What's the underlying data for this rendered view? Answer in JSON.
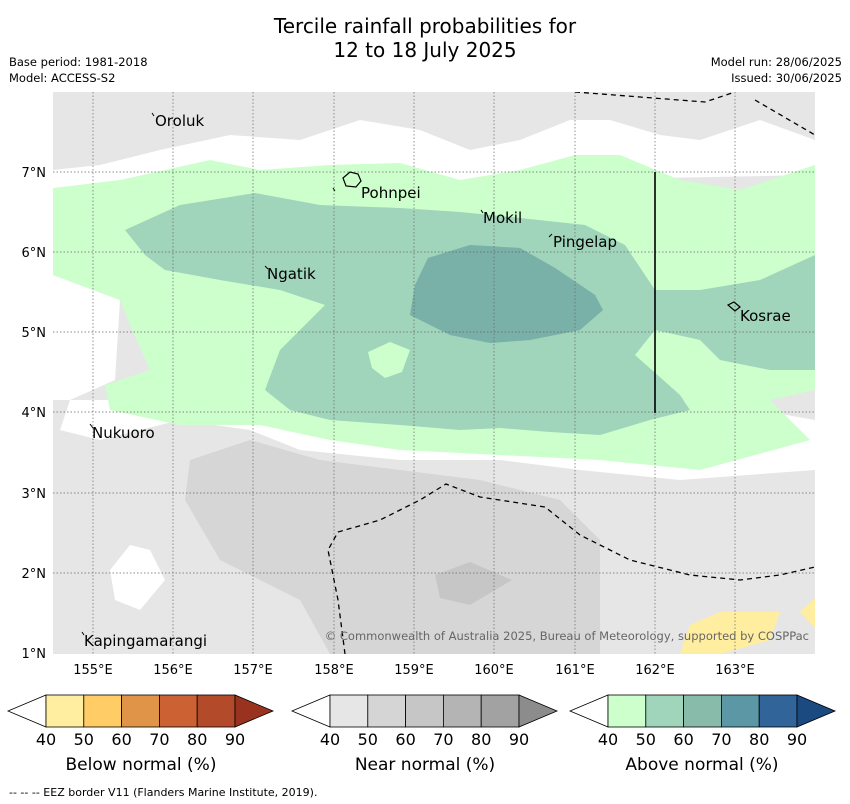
{
  "title_line1": "Tercile rainfall probabilities for",
  "title_line2": "12 to 18 July 2025",
  "base_period": "Base period: 1981-2018",
  "model": "Model: ACCESS-S2",
  "model_run": "Model run: 28/06/2025",
  "issued": "Issued: 30/06/2025",
  "copyright": "© Commonwealth of Australia 2025, Bureau of Meteorology, supported by COSPPac",
  "footnote": "-- -- -- EEZ border V11 (Flanders Marine Institute, 2019).",
  "map": {
    "lon_labels": [
      "155°E",
      "156°E",
      "157°E",
      "158°E",
      "159°E",
      "160°E",
      "161°E",
      "162°E",
      "163°E"
    ],
    "lat_labels": [
      "1°N",
      "2°N",
      "3°N",
      "4°N",
      "5°N",
      "6°N",
      "7°N"
    ],
    "places": [
      {
        "name": "Oroluk"
      },
      {
        "name": "Pohnpei"
      },
      {
        "name": "Mokil"
      },
      {
        "name": "Pingelap"
      },
      {
        "name": "Ngatik"
      },
      {
        "name": "Kosrae"
      },
      {
        "name": "Nukuoro"
      },
      {
        "name": "Kapingamarangi"
      }
    ]
  },
  "legends": {
    "ticks": [
      "40",
      "50",
      "60",
      "70",
      "80",
      "90"
    ],
    "below": {
      "label": "Below normal (%)",
      "colors": [
        "#ffffff",
        "#ffeea0",
        "#ffcc66",
        "#e09448",
        "#cc6133",
        "#b34a2a",
        "#99331f"
      ]
    },
    "near": {
      "label": "Near normal (%)",
      "colors": [
        "#ffffff",
        "#e6e6e6",
        "#d5d5d5",
        "#c6c6c6",
        "#b4b4b4",
        "#a2a2a2",
        "#8c8c8c"
      ]
    },
    "above": {
      "label": "Above normal (%)",
      "colors": [
        "#ffffff",
        "#ccffcc",
        "#a0d4bb",
        "#88bba9",
        "#5b97a4",
        "#31659a",
        "#1a4a80"
      ]
    }
  }
}
